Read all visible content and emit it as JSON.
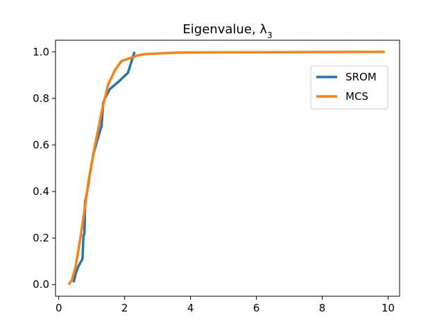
{
  "chart_data": {
    "type": "line",
    "title": "Eigenvalue, λ",
    "title_subscript": "3",
    "xlabel": "",
    "ylabel": "",
    "xlim": [
      -0.1,
      10.35
    ],
    "ylim": [
      -0.05,
      1.05
    ],
    "x_ticks": [
      0,
      2,
      4,
      6,
      8,
      10
    ],
    "y_ticks": [
      0.0,
      0.2,
      0.4,
      0.6,
      0.8,
      1.0
    ],
    "x_tick_labels": [
      "0",
      "2",
      "4",
      "6",
      "8",
      "10"
    ],
    "y_tick_labels": [
      "0.0",
      "0.2",
      "0.4",
      "0.6",
      "0.8",
      "1.0"
    ],
    "grid": false,
    "legend_position": "upper right",
    "series": [
      {
        "name": "SROM",
        "color": "#1f77b4",
        "x": [
          0.45,
          0.52,
          0.6,
          0.72,
          0.75,
          0.78,
          0.8,
          0.82,
          0.85,
          0.9,
          0.95,
          1.05,
          1.15,
          1.25,
          1.3,
          1.35,
          1.4,
          1.55,
          1.8,
          2.1,
          2.3
        ],
        "y": [
          0.01,
          0.05,
          0.08,
          0.11,
          0.21,
          0.22,
          0.36,
          0.37,
          0.39,
          0.43,
          0.48,
          0.56,
          0.61,
          0.66,
          0.68,
          0.78,
          0.8,
          0.84,
          0.87,
          0.91,
          1.0
        ]
      },
      {
        "name": "MCS",
        "color": "#ff7f0e",
        "x": [
          0.3,
          0.4,
          0.5,
          0.6,
          0.7,
          0.8,
          0.9,
          1.0,
          1.1,
          1.2,
          1.3,
          1.4,
          1.5,
          1.6,
          1.7,
          1.8,
          1.9,
          2.0,
          2.2,
          2.4,
          2.6,
          3.0,
          3.6,
          5.0,
          7.0,
          9.9
        ],
        "y": [
          0.0,
          0.02,
          0.07,
          0.15,
          0.24,
          0.34,
          0.44,
          0.52,
          0.6,
          0.67,
          0.74,
          0.8,
          0.86,
          0.89,
          0.92,
          0.94,
          0.96,
          0.965,
          0.975,
          0.985,
          0.99,
          0.993,
          0.997,
          0.998,
          0.999,
          1.0
        ]
      }
    ]
  }
}
